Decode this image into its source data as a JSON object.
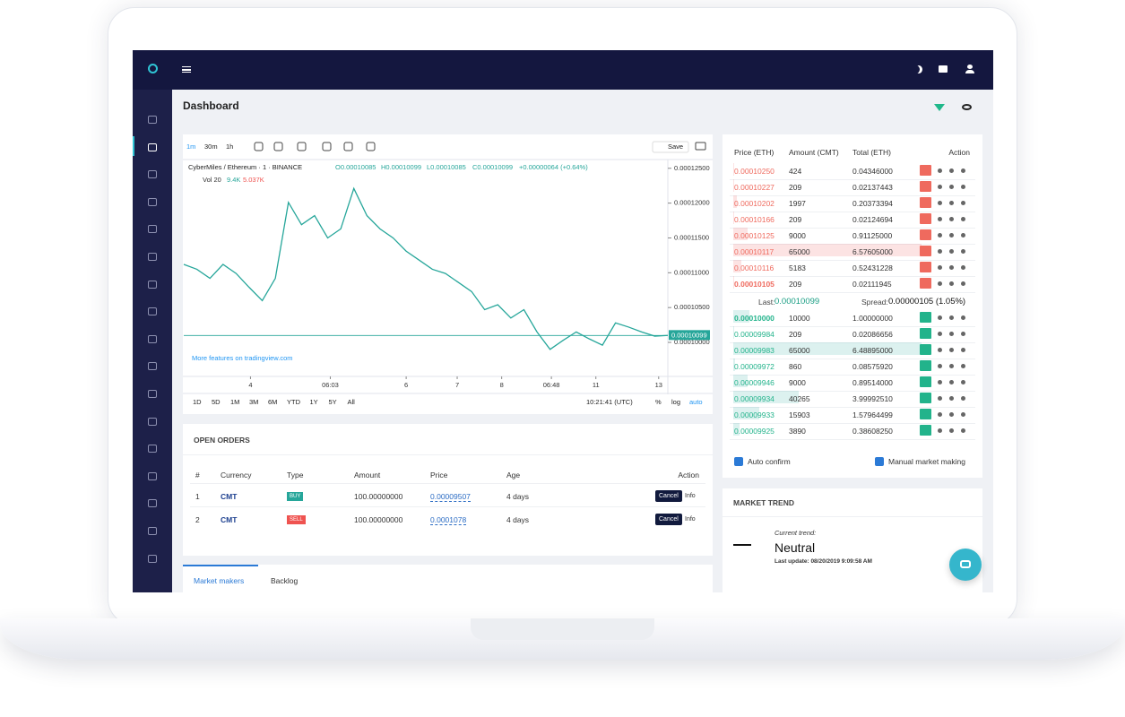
{
  "dashboard": {
    "title": "Dashboard"
  },
  "chart_toolbar": {
    "intervals": [
      "1m",
      "30m",
      "1h"
    ],
    "save": "Save"
  },
  "chart_header": {
    "symbol": "CyberMiles / Ethereum · 1 · BINANCE",
    "ohlc": [
      "O0.00010085",
      "H0.00010099",
      "L0.00010085",
      "C0.00010099",
      "+0.00000064 (+0.64%)"
    ],
    "volume_label": "Vol 20",
    "volume_values": [
      "9.4K",
      "5.037K"
    ]
  },
  "chart_data": {
    "type": "line",
    "color": "#26a69a",
    "values": [
      0.0001112,
      0.0001105,
      0.0001092,
      0.0001112,
      0.0001099,
      0.0001079,
      0.000106,
      0.0001092,
      0.0001201,
      0.0001169,
      0.0001182,
      0.000115,
      0.0001163,
      0.0001221,
      0.0001182,
      0.0001163,
      0.000115,
      0.0001131,
      0.0001118,
      0.0001105,
      0.0001099,
      0.0001086,
      0.0001073,
      0.0001047,
      0.0001054,
      0.0001035,
      0.0001047,
      0.0001015,
      9.9e-05,
      0.0001003,
      0.0001015,
      0.0001005,
      9.96e-05,
      0.0001028,
      0.0001022,
      0.0001015,
      0.0001009,
      0.000101
    ],
    "xlim": [
      0,
      37
    ],
    "xticks": [
      {
        "value": 5.1,
        "label": "4"
      },
      {
        "value": 11.2,
        "label": "06:03"
      },
      {
        "value": 17,
        "label": "6"
      },
      {
        "value": 20.9,
        "label": "7"
      },
      {
        "value": 24.3,
        "label": "8"
      },
      {
        "value": 28.1,
        "label": "06:48"
      },
      {
        "value": 31.5,
        "label": "11"
      },
      {
        "value": 36.3,
        "label": "13"
      }
    ],
    "ylim": [
      9.64e-05,
      0.000126
    ],
    "yticks": [
      {
        "value": 0.0001,
        "label": "0.00010000"
      },
      {
        "value": 0.000105,
        "label": "0.00010500"
      },
      {
        "value": 0.00011,
        "label": "0.00011000"
      },
      {
        "value": 0.000115,
        "label": "0.00011500"
      },
      {
        "value": 0.00012,
        "label": "0.00012000"
      },
      {
        "value": 0.000125,
        "label": "0.00012500"
      }
    ],
    "price_line": {
      "value": 0.00010099,
      "label": "0.00010099"
    }
  },
  "chart_footer": {
    "promo": "More features on tradingview.com",
    "ranges": [
      "1D",
      "5D",
      "1M",
      "3M",
      "6M",
      "YTD",
      "1Y",
      "5Y",
      "All"
    ],
    "time": "10:21:41 (UTC)",
    "scale_options": [
      "%",
      "log",
      "auto"
    ]
  },
  "order_book": {
    "columns": [
      "Price (ETH)",
      "Amount (CMT)",
      "Total (ETH)",
      "Action"
    ],
    "asks": [
      [
        "0.00010250",
        "424",
        "0.04346000"
      ],
      [
        "0.00010227",
        "209",
        "0.02137443"
      ],
      [
        "0.00010202",
        "1997",
        "0.20373394"
      ],
      [
        "0.00010166",
        "209",
        "0.02124694"
      ],
      [
        "0.00010125",
        "9000",
        "0.91125000"
      ],
      [
        "0.00010117",
        "65000",
        "6.57605000"
      ],
      [
        "0.00010116",
        "5183",
        "0.52431228"
      ],
      [
        "0.00010105",
        "209",
        "0.02111945"
      ]
    ],
    "last_label": "Last:",
    "last": "0.00010099",
    "spread_label": "Spread:",
    "spread": "0.00000105 (1.05%)",
    "bids": [
      [
        "0.00010000",
        "10000",
        "1.00000000"
      ],
      [
        "0.00009984",
        "209",
        "0.02086656"
      ],
      [
        "0.00009983",
        "65000",
        "6.48895000"
      ],
      [
        "0.00009972",
        "860",
        "0.08575920"
      ],
      [
        "0.00009946",
        "9000",
        "0.89514000"
      ],
      [
        "0.00009934",
        "40265",
        "3.99992510"
      ],
      [
        "0.00009933",
        "15903",
        "1.57964499"
      ],
      [
        "0.00009925",
        "3890",
        "0.38608250"
      ]
    ],
    "options": [
      "Auto confirm",
      "Manual market making"
    ]
  },
  "open_orders": {
    "title": "OPEN ORDERS",
    "columns": [
      "#",
      "Currency",
      "Type",
      "Amount",
      "Price",
      "Age",
      "Action"
    ],
    "rows": [
      [
        "1",
        "CMT",
        "BUY",
        "100.00000000",
        "0.00009507",
        "4 days"
      ],
      [
        "2",
        "CMT",
        "SELL",
        "100.00000000",
        "0.0001078",
        "4 days"
      ]
    ],
    "actions": [
      "Cancel",
      "Info"
    ]
  },
  "tabs": [
    "Market makers",
    "Backlog"
  ],
  "market_trend": {
    "title": "MARKET TREND",
    "label": "Current trend:",
    "value": "Neutral",
    "update": "Last update: 08/20/2019 9:09:58 AM"
  }
}
